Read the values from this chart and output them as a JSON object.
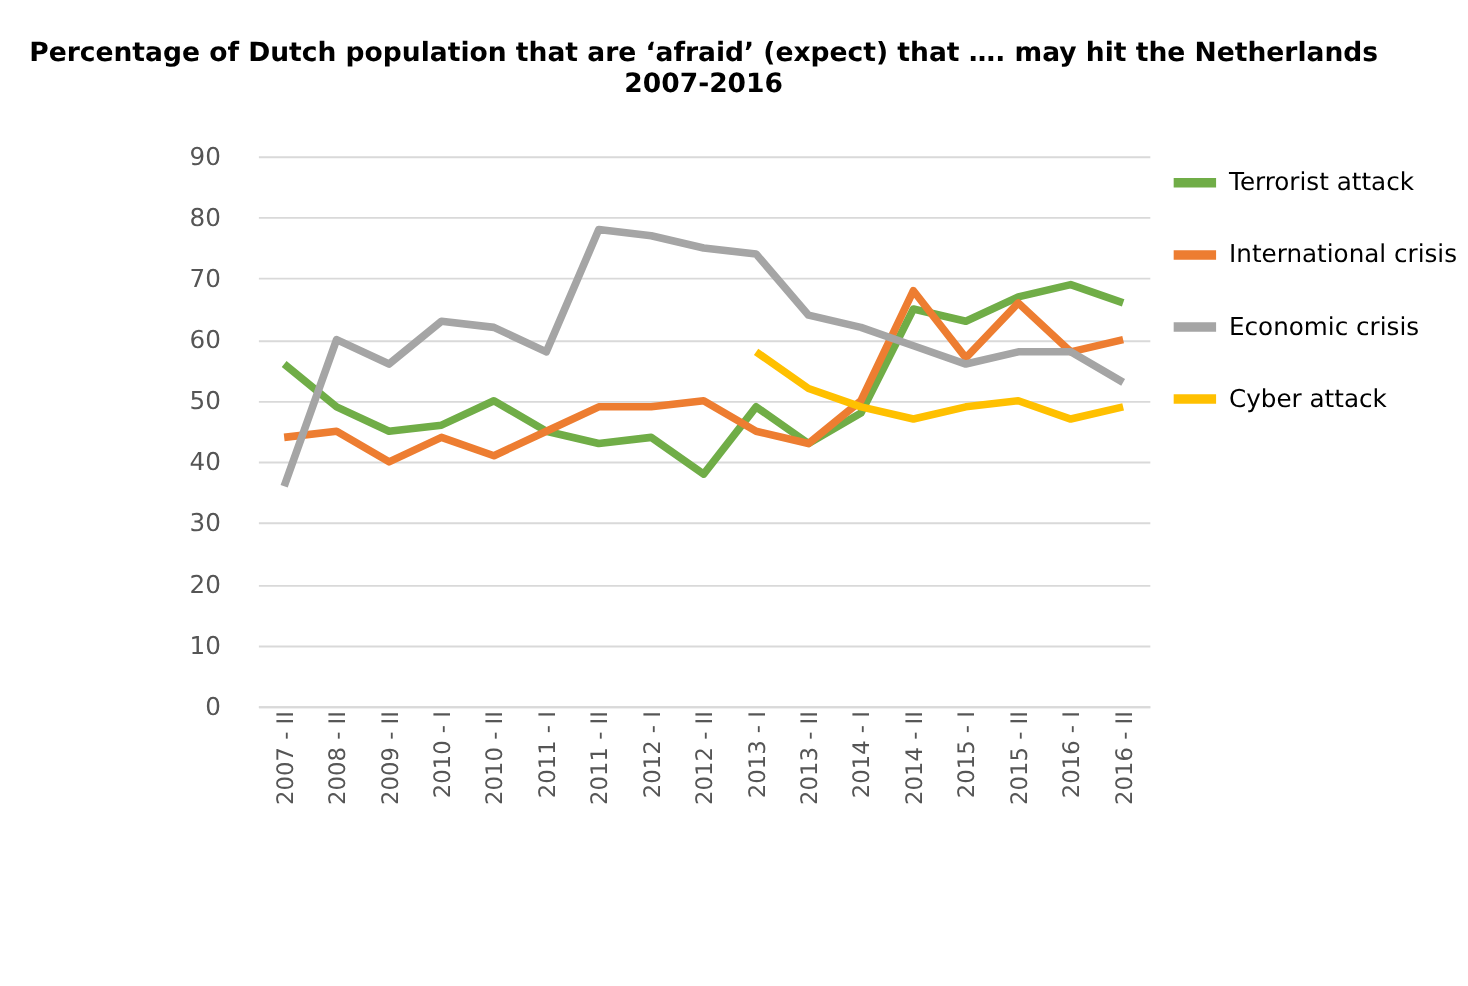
{
  "chart_data": {
    "type": "line",
    "title": "Percentage of Dutch population that are ‘afraid’ (expect) that …. may hit the Netherlands\n2007-2016",
    "categories": [
      "2007 - II",
      "2008 - II",
      "2009 - II",
      "2010 - I",
      "2010 - II",
      "2011 - I",
      "2011 - II",
      "2012 - I",
      "2012 - II",
      "2013 - I",
      "2013 - II",
      "2014 - I",
      "2014 - II",
      "2015 - I",
      "2015 - II",
      "2016 - I",
      "2016 - II"
    ],
    "series": [
      {
        "name": "Terrorist attack",
        "color": "#70ad47",
        "values": [
          56,
          49,
          45,
          46,
          50,
          45,
          43,
          44,
          38,
          49,
          43,
          48,
          65,
          63,
          67,
          69,
          66
        ]
      },
      {
        "name": "International crisis",
        "color": "#ed7d31",
        "values": [
          44,
          45,
          40,
          44,
          41,
          45,
          49,
          49,
          50,
          45,
          43,
          50,
          68,
          57,
          66,
          58,
          60
        ]
      },
      {
        "name": "Economic crisis",
        "color": "#a5a5a5",
        "values": [
          36,
          60,
          56,
          63,
          62,
          58,
          78,
          77,
          75,
          74,
          64,
          62,
          59,
          56,
          58,
          58,
          53
        ]
      },
      {
        "name": "Cyber attack",
        "color": "#ffc000",
        "values": [
          null,
          null,
          null,
          null,
          null,
          null,
          null,
          null,
          null,
          58,
          52,
          49,
          47,
          49,
          50,
          47,
          49
        ]
      }
    ],
    "ylim": [
      0,
      90
    ],
    "yticks": [
      0,
      10,
      20,
      30,
      40,
      50,
      60,
      70,
      80,
      90
    ],
    "grid": "y",
    "legend": "right",
    "marker": "none",
    "line_style": "solid"
  }
}
